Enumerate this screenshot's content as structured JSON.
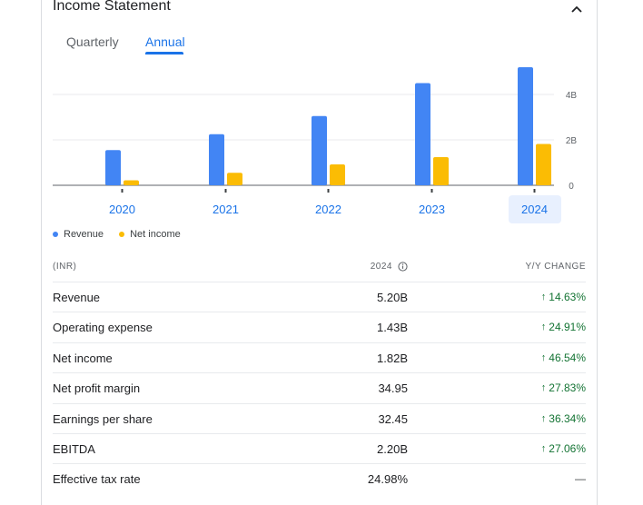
{
  "header": {
    "title": "Income Statement",
    "collapse_icon": "chevron-up-icon"
  },
  "tabs": [
    {
      "label": "Quarterly",
      "active": false
    },
    {
      "label": "Annual",
      "active": true
    }
  ],
  "colors": {
    "revenue": "#4285f4",
    "net_income": "#fbbc04",
    "accent": "#1a73e8",
    "positive": "#137333",
    "selected_bg": "#e8f0fe"
  },
  "chart_data": {
    "type": "bar",
    "categories": [
      "2020",
      "2021",
      "2022",
      "2023",
      "2024"
    ],
    "series": [
      {
        "name": "Revenue",
        "values": [
          1.55,
          2.25,
          3.05,
          4.5,
          5.2
        ]
      },
      {
        "name": "Net income",
        "values": [
          0.22,
          0.55,
          0.92,
          1.24,
          1.82
        ]
      }
    ],
    "yticks": [
      "4B",
      "2B",
      "0"
    ],
    "ytick_values": [
      4,
      2,
      0
    ],
    "ylim": [
      0,
      5.5
    ],
    "unit": "B",
    "grid": true,
    "selected_category": "2024"
  },
  "legend": [
    {
      "label": "Revenue"
    },
    {
      "label": "Net income"
    }
  ],
  "table": {
    "headers": {
      "label": "(INR)",
      "value": "2024",
      "change": "Y/Y CHANGE"
    },
    "rows": [
      {
        "label": "Revenue",
        "value": "5.20B",
        "change": "14.63%",
        "trend": "up"
      },
      {
        "label": "Operating expense",
        "value": "1.43B",
        "change": "24.91%",
        "trend": "up"
      },
      {
        "label": "Net income",
        "value": "1.82B",
        "change": "46.54%",
        "trend": "up"
      },
      {
        "label": "Net profit margin",
        "value": "34.95",
        "change": "27.83%",
        "trend": "up"
      },
      {
        "label": "Earnings per share",
        "value": "32.45",
        "change": "36.34%",
        "trend": "up"
      },
      {
        "label": "EBITDA",
        "value": "2.20B",
        "change": "27.06%",
        "trend": "up"
      },
      {
        "label": "Effective tax rate",
        "value": "24.98%",
        "change": "—",
        "trend": "none"
      }
    ]
  }
}
